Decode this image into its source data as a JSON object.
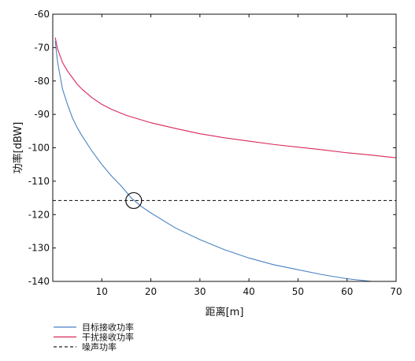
{
  "chart_data": {
    "type": "line",
    "title": "",
    "xlabel": "距离[m]",
    "ylabel": "功率[dBW]",
    "xlim": [
      0,
      70
    ],
    "ylim": [
      -140,
      -60
    ],
    "x_ticks": [
      10,
      20,
      30,
      40,
      50,
      60,
      70
    ],
    "y_ticks": [
      -60,
      -70,
      -80,
      -90,
      -100,
      -110,
      -120,
      -130,
      -140
    ],
    "grid": false,
    "legend_position": "below-left",
    "series": [
      {
        "name": "目标接收功率",
        "color": "#4a82c3",
        "style": "solid",
        "x": [
          0.5,
          1,
          2,
          3,
          4,
          5,
          6,
          8,
          10,
          12,
          14,
          16,
          18,
          20,
          25,
          30,
          35,
          40,
          45,
          50,
          55,
          60,
          65
        ],
        "y": [
          -68,
          -74.5,
          -82.5,
          -87,
          -91,
          -94,
          -96.5,
          -101,
          -105,
          -108.5,
          -111.5,
          -115,
          -117.5,
          -119.5,
          -124,
          -127.5,
          -130.5,
          -133,
          -135,
          -136.5,
          -138,
          -139.2,
          -140
        ]
      },
      {
        "name": "干扰接收功率",
        "color": "#d9285a",
        "style": "solid",
        "x": [
          0.5,
          1,
          2,
          3,
          4,
          5,
          6,
          8,
          10,
          12,
          15,
          20,
          25,
          30,
          35,
          40,
          45,
          50,
          55,
          60,
          65,
          70
        ],
        "y": [
          -67,
          -70.5,
          -74.5,
          -77,
          -79,
          -81,
          -82.5,
          -85,
          -87,
          -88.5,
          -90.3,
          -92.5,
          -94.2,
          -95.8,
          -97,
          -98,
          -99,
          -99.8,
          -100.6,
          -101.5,
          -102.2,
          -103
        ]
      },
      {
        "name": "噪声功率",
        "color": "#222222",
        "style": "dashed",
        "x": [
          0,
          70
        ],
        "y": [
          -115.8,
          -115.8
        ]
      }
    ],
    "annotations": [
      {
        "type": "circle",
        "x": 16.5,
        "y": -115.8
      }
    ]
  }
}
